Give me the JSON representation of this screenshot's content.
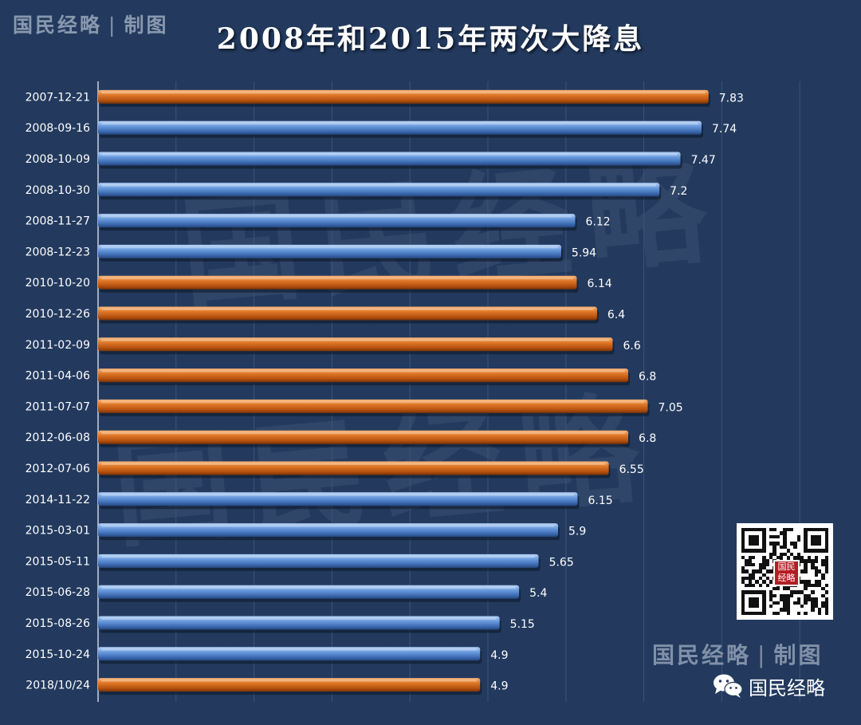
{
  "brand_top": {
    "name": "国民经略",
    "separator": "|",
    "suffix": "制图"
  },
  "watermark": "国民经略",
  "chart_data": {
    "type": "bar",
    "orientation": "horizontal",
    "title": "2008年和2015年两次大降息",
    "xlabel": "",
    "ylabel": "",
    "xlim": [
      0,
      9
    ],
    "grid": true,
    "legend": "none",
    "categories": [
      "2007-12-21",
      "2008-09-16",
      "2008-10-09",
      "2008-10-30",
      "2008-11-27",
      "2008-12-23",
      "2010-10-20",
      "2010-12-26",
      "2011-02-09",
      "2011-04-06",
      "2011-07-07",
      "2012-06-08",
      "2012-07-06",
      "2014-11-22",
      "2015-03-01",
      "2015-05-11",
      "2015-06-28",
      "2015-08-26",
      "2015-10-24",
      "2018/10/24"
    ],
    "values": [
      7.83,
      7.74,
      7.47,
      7.2,
      6.12,
      5.94,
      6.14,
      6.4,
      6.6,
      6.8,
      7.05,
      6.8,
      6.55,
      6.15,
      5.9,
      5.65,
      5.4,
      5.15,
      4.9,
      4.9
    ],
    "value_labels": [
      "7.83",
      "7.74",
      "7.47",
      "7.2",
      "6.12",
      "5.94",
      "6.14",
      "6.4",
      "6.6",
      "6.8",
      "7.05",
      "6.8",
      "6.55",
      "6.15",
      "5.9",
      "5.65",
      "5.4",
      "5.15",
      "4.9",
      "4.9"
    ],
    "bar_colors": [
      "orange",
      "blue",
      "blue",
      "blue",
      "blue",
      "blue",
      "orange",
      "orange",
      "orange",
      "orange",
      "orange",
      "orange",
      "orange",
      "blue",
      "blue",
      "blue",
      "blue",
      "blue",
      "blue",
      "orange"
    ],
    "palette": {
      "orange": "#d9681c",
      "blue": "#5b8fd4"
    }
  },
  "brand_bottom": {
    "name": "国民经略",
    "separator": "|",
    "suffix": "制图"
  },
  "qr_code": {
    "seal_text": "国民经略"
  },
  "credit": {
    "icon": "wechat-icon",
    "name": "国民经略"
  },
  "colors": {
    "background": "#233a5e",
    "gridline": "#3a5478",
    "axis": "#c8d2e0"
  }
}
